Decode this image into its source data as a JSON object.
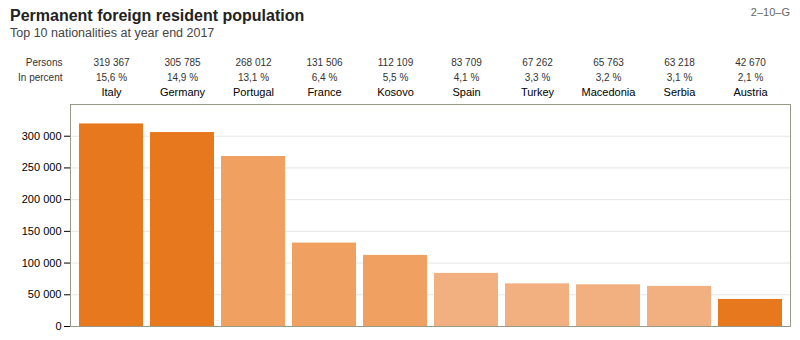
{
  "chart_data": {
    "type": "bar",
    "title": "Permanent foreign resident population",
    "subtitle": "Top 10 nationalities at year end 2017",
    "annotation": "2–10–G",
    "categories": [
      "Italy",
      "Germany",
      "Portugal",
      "France",
      "Kosovo",
      "Spain",
      "Turkey",
      "Macedonia",
      "Serbia",
      "Austria"
    ],
    "values": [
      319367,
      305785,
      268012,
      131506,
      112109,
      83709,
      67262,
      65763,
      63218,
      42670
    ],
    "value_labels": [
      "319 367",
      "305 785",
      "268 012",
      "131 506",
      "112 109",
      "83 709",
      "67 262",
      "65 763",
      "63 218",
      "42 670"
    ],
    "percents": [
      15.6,
      14.9,
      13.1,
      6.4,
      5.5,
      4.1,
      3.3,
      3.2,
      3.1,
      2.1
    ],
    "percent_labels": [
      "15,6 %",
      "14,9 %",
      "13,1 %",
      "6,4 %",
      "5,5 %",
      "4,1 %",
      "3,3 %",
      "3,2 %",
      "3,1 %",
      "2,1 %"
    ],
    "row_labels": [
      "Persons",
      "In percent"
    ],
    "colors": [
      "#E8781E",
      "#E8781E",
      "#F0A060",
      "#F0A060",
      "#F0A060",
      "#F2B080",
      "#F2B080",
      "#F2B080",
      "#F2B080",
      "#E8781E"
    ],
    "ylim": [
      0,
      350000
    ],
    "yticks": [
      0,
      {
        "value": 50000,
        "label": "50 000"
      },
      {
        "value": 100000,
        "label": "100 000"
      },
      {
        "value": 150000,
        "label": "150 000"
      },
      {
        "value": 200000,
        "label": "200 000"
      },
      {
        "value": 250000,
        "label": "250 000"
      },
      {
        "value": 300000,
        "label": "300 000"
      }
    ],
    "grid": true,
    "data_labels": true
  }
}
